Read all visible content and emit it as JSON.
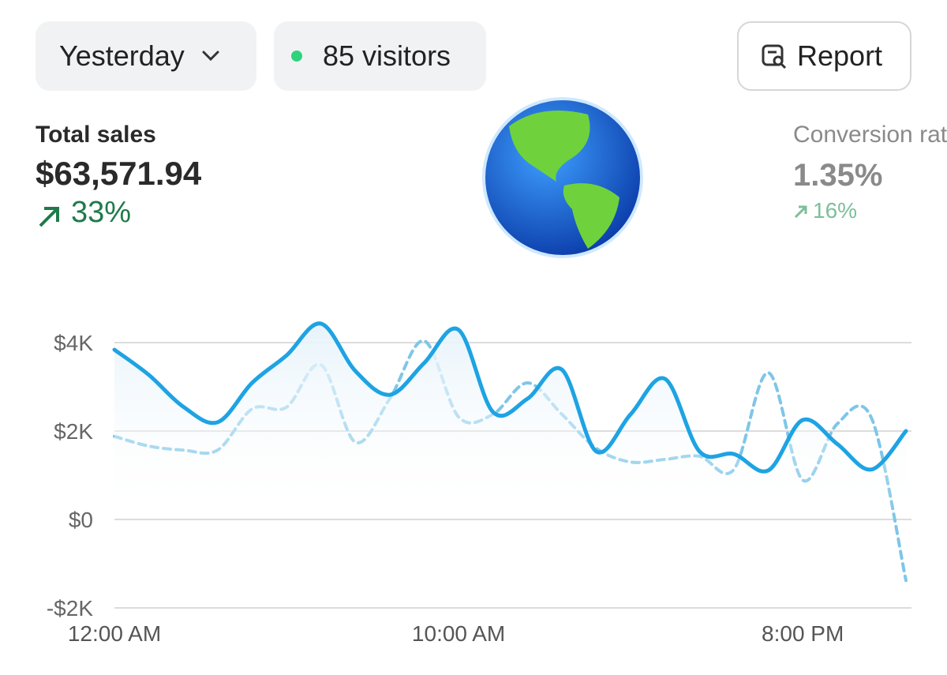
{
  "header": {
    "period": "Yesterday",
    "visitors": "85 visitors",
    "report": "Report"
  },
  "metrics": [
    {
      "label": "Total sales",
      "value": "$63,571.94",
      "change": "33%"
    },
    {
      "label": "Conversion rate",
      "value": "1.35%",
      "change": "16%"
    }
  ],
  "chart_data": {
    "type": "line",
    "x": [
      0,
      1,
      2,
      3,
      4,
      5,
      6,
      7,
      8,
      9,
      10,
      11,
      12,
      13,
      14,
      15,
      16,
      17,
      18,
      19,
      20,
      21,
      22,
      23
    ],
    "xlim": [
      0,
      23
    ],
    "xticks": [
      {
        "value": 0,
        "label": "12:00 AM"
      },
      {
        "value": 10,
        "label": "10:00 AM"
      },
      {
        "value": 20,
        "label": "8:00 PM"
      }
    ],
    "ylim": [
      -2000,
      4000
    ],
    "yticks": [
      {
        "value": -2000,
        "label": "-$2K"
      },
      {
        "value": 0,
        "label": "$0"
      },
      {
        "value": 2000,
        "label": "$2K"
      },
      {
        "value": 4000,
        "label": "$4K"
      }
    ],
    "grid": true,
    "series": [
      {
        "color": "#1ea3e3",
        "style": "solid",
        "values": [
          3840,
          3270,
          2550,
          2200,
          3090,
          3710,
          4430,
          3360,
          2820,
          3540,
          4290,
          2430,
          2730,
          3390,
          1540,
          2380,
          3180,
          1540,
          1480,
          1110,
          2250,
          1710,
          1130,
          2000
        ]
      },
      {
        "color": "#7ec6e8",
        "style": "dashed",
        "values": [
          1880,
          1660,
          1570,
          1570,
          2500,
          2540,
          3500,
          1750,
          2730,
          4040,
          2320,
          2380,
          3090,
          2380,
          1610,
          1300,
          1360,
          1430,
          1130,
          3320,
          890,
          2160,
          2290,
          -1380
        ]
      }
    ]
  }
}
